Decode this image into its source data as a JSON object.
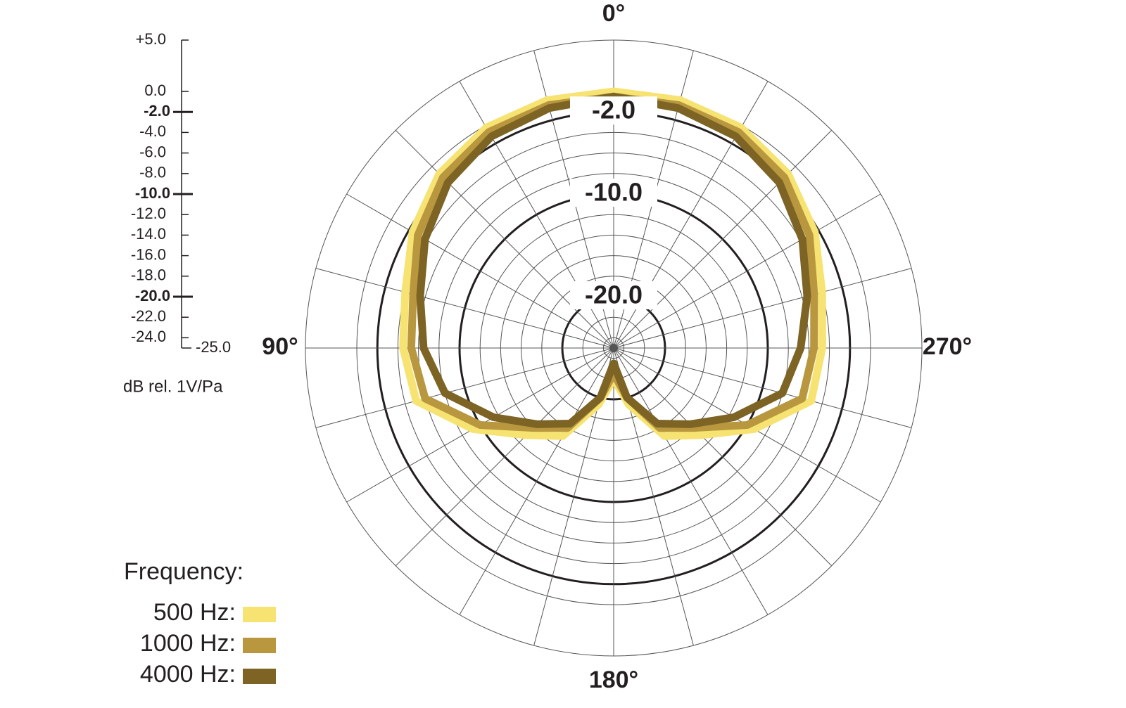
{
  "chart_data": {
    "type": "polar",
    "radial_axis_label": "dB rel. 1V/Pa",
    "legend_title": "Frequency:",
    "theta": [
      0,
      15,
      30,
      45,
      60,
      75,
      90,
      105,
      120,
      135,
      150,
      165,
      180,
      195,
      210,
      225,
      240,
      255,
      270,
      285,
      300,
      315,
      330,
      345
    ],
    "theta_ticks": [
      {
        "value": 0,
        "label": "0°"
      },
      {
        "value": 90,
        "label": "90°"
      },
      {
        "value": 180,
        "label": "180°"
      },
      {
        "value": 270,
        "label": "270°"
      }
    ],
    "ylim": [
      -25,
      5
    ],
    "yticks": [
      {
        "value": 5,
        "label": "+5.0"
      },
      {
        "value": 0,
        "label": "0.0"
      },
      {
        "value": -2,
        "label": "-2.0"
      },
      {
        "value": -4,
        "label": "-4.0"
      },
      {
        "value": -6,
        "label": "-6.0"
      },
      {
        "value": -8,
        "label": "-8.0"
      },
      {
        "value": -10,
        "label": "-10.0"
      },
      {
        "value": -12,
        "label": "-12.0"
      },
      {
        "value": -14,
        "label": "-14.0"
      },
      {
        "value": -16,
        "label": "-16.0"
      },
      {
        "value": -18,
        "label": "-18.0"
      },
      {
        "value": -20,
        "label": "-20.0"
      },
      {
        "value": -22,
        "label": "-22.0"
      },
      {
        "value": -24,
        "label": "-24.0"
      },
      {
        "value": -25,
        "label": "-25.0"
      }
    ],
    "ring_labels": [
      {
        "value": -2,
        "label": "-2.0"
      },
      {
        "value": -10,
        "label": "-10.0"
      },
      {
        "value": -20,
        "label": "-20.0"
      }
    ],
    "series": [
      {
        "name": "500 Hz:",
        "color": "#f6e372",
        "values": [
          0,
          0,
          -0.2,
          -1,
          -2.4,
          -4,
          -4.5,
          -5.1,
          -9.2,
          -13,
          -15.1,
          -19.3,
          -22,
          -19.3,
          -15.1,
          -13,
          -9.2,
          -5.1,
          -4.7,
          -4,
          -2.4,
          -1,
          -0.2,
          0
        ]
      },
      {
        "name": "1000 Hz:",
        "color": "#b8973f",
        "values": [
          -0.5,
          -0.5,
          -0.7,
          -1.5,
          -3,
          -4.8,
          -5.3,
          -6,
          -10,
          -14,
          -16,
          -20,
          -22.5,
          -20,
          -16,
          -14,
          -10,
          -6,
          -5.5,
          -4.8,
          -3,
          -1.5,
          -0.7,
          -0.5
        ]
      },
      {
        "name": "4000 Hz:",
        "color": "#7d6424",
        "values": [
          -0.5,
          -0.8,
          -1.2,
          -2.2,
          -3.8,
          -5.5,
          -6.5,
          -8,
          -11.5,
          -14.5,
          -16.5,
          -20,
          -23.5,
          -20,
          -16.5,
          -14.5,
          -11.5,
          -8,
          -6.8,
          -5.5,
          -3.8,
          -2.2,
          -1.2,
          -0.8
        ]
      }
    ]
  }
}
